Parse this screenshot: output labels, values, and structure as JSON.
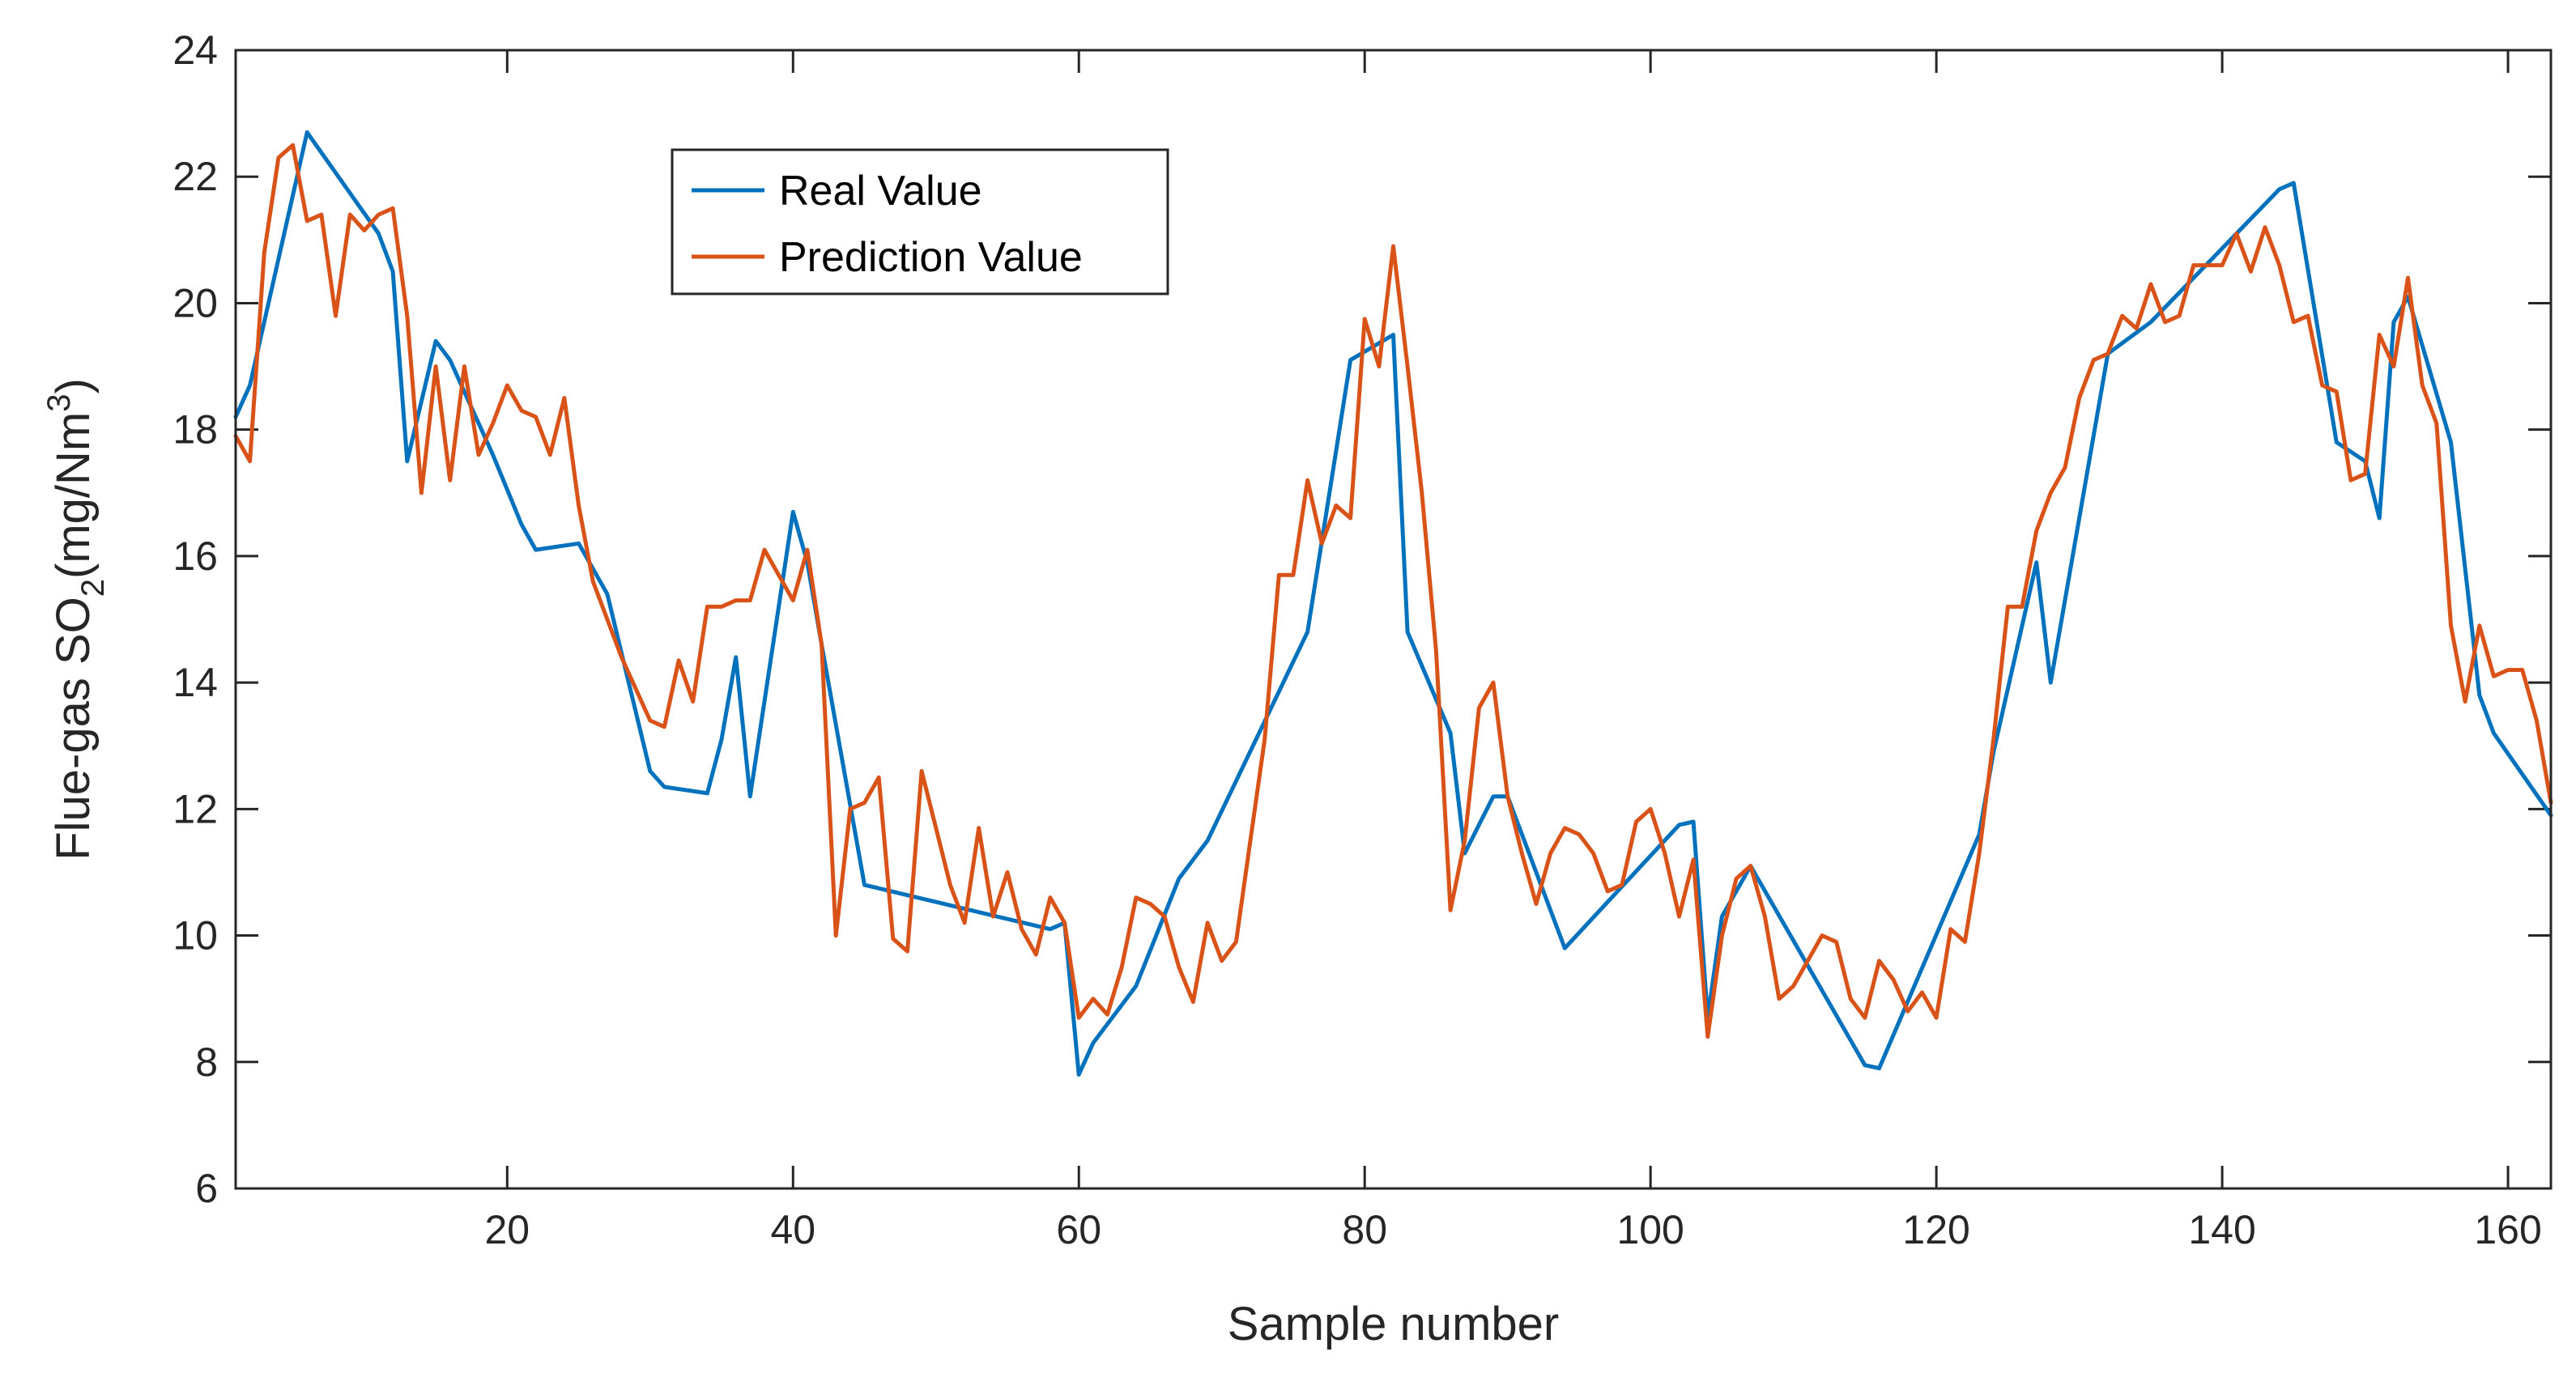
{
  "chart_data": {
    "type": "line",
    "title": "",
    "xlabel": "Sample number",
    "ylabel_parts": [
      "Flue-gas SO",
      "2",
      "(mg/Nm",
      "3",
      ")"
    ],
    "xlim": [
      1,
      163
    ],
    "ylim": [
      6,
      24
    ],
    "xticks": [
      20,
      40,
      60,
      80,
      100,
      120,
      140,
      160
    ],
    "yticks": [
      6,
      8,
      10,
      12,
      14,
      16,
      18,
      20,
      22,
      24
    ],
    "grid": false,
    "legend_position": "top-left-center",
    "series": [
      {
        "name": "Real Value",
        "color": "#0072BD",
        "points": [
          [
            1,
            18.2
          ],
          [
            2,
            18.7
          ],
          [
            6,
            22.7
          ],
          [
            11,
            21.1
          ],
          [
            12,
            20.5
          ],
          [
            13,
            17.5
          ],
          [
            15,
            19.4
          ],
          [
            16,
            19.1
          ],
          [
            19,
            17.6
          ],
          [
            21,
            16.5
          ],
          [
            22,
            16.1
          ],
          [
            25,
            16.2
          ],
          [
            27,
            15.4
          ],
          [
            30,
            12.6
          ],
          [
            31,
            12.35
          ],
          [
            34,
            12.25
          ],
          [
            35,
            13.1
          ],
          [
            36,
            14.4
          ],
          [
            37,
            12.2
          ],
          [
            40,
            16.7
          ],
          [
            41,
            15.9
          ],
          [
            42,
            14.6
          ],
          [
            45,
            10.8
          ],
          [
            58,
            10.1
          ],
          [
            59,
            10.2
          ],
          [
            60,
            7.8
          ],
          [
            61,
            8.3
          ],
          [
            64,
            9.2
          ],
          [
            67,
            10.9
          ],
          [
            69,
            11.5
          ],
          [
            76,
            14.8
          ],
          [
            79,
            19.1
          ],
          [
            82,
            19.5
          ],
          [
            83,
            14.8
          ],
          [
            86,
            13.2
          ],
          [
            87,
            11.3
          ],
          [
            89,
            12.2
          ],
          [
            90,
            12.2
          ],
          [
            94,
            9.8
          ],
          [
            102,
            11.75
          ],
          [
            103,
            11.8
          ],
          [
            104,
            8.7
          ],
          [
            105,
            10.3
          ],
          [
            107,
            11.1
          ],
          [
            115,
            7.95
          ],
          [
            116,
            7.9
          ],
          [
            123,
            11.6
          ],
          [
            124,
            12.9
          ],
          [
            127,
            15.9
          ],
          [
            128,
            14.0
          ],
          [
            132,
            19.2
          ],
          [
            135,
            19.7
          ],
          [
            144,
            21.8
          ],
          [
            145,
            21.9
          ],
          [
            148,
            17.8
          ],
          [
            150,
            17.5
          ],
          [
            151,
            16.6
          ],
          [
            152,
            19.7
          ],
          [
            153,
            20.1
          ],
          [
            156,
            17.8
          ],
          [
            158,
            13.8
          ],
          [
            159,
            13.2
          ],
          [
            163,
            11.9
          ]
        ]
      },
      {
        "name": "Prediction Value",
        "color": "#D95319",
        "points": [
          [
            1,
            17.9
          ],
          [
            2,
            17.5
          ],
          [
            3,
            20.8
          ],
          [
            4,
            22.3
          ],
          [
            5,
            22.5
          ],
          [
            6,
            21.3
          ],
          [
            7,
            21.4
          ],
          [
            8,
            19.8
          ],
          [
            9,
            21.4
          ],
          [
            10,
            21.15
          ],
          [
            11,
            21.4
          ],
          [
            12,
            21.5
          ],
          [
            13,
            19.8
          ],
          [
            14,
            17.0
          ],
          [
            15,
            19.0
          ],
          [
            16,
            17.2
          ],
          [
            17,
            19.0
          ],
          [
            18,
            17.6
          ],
          [
            19,
            18.1
          ],
          [
            20,
            18.7
          ],
          [
            21,
            18.3
          ],
          [
            22,
            18.2
          ],
          [
            23,
            17.6
          ],
          [
            24,
            18.5
          ],
          [
            25,
            16.8
          ],
          [
            26,
            15.6
          ],
          [
            27,
            15.0
          ],
          [
            28,
            14.4
          ],
          [
            29,
            13.9
          ],
          [
            30,
            13.4
          ],
          [
            31,
            13.3
          ],
          [
            32,
            14.35
          ],
          [
            33,
            13.7
          ],
          [
            34,
            15.2
          ],
          [
            35,
            15.2
          ],
          [
            36,
            15.3
          ],
          [
            37,
            15.3
          ],
          [
            38,
            16.1
          ],
          [
            39,
            15.7
          ],
          [
            40,
            15.3
          ],
          [
            41,
            16.1
          ],
          [
            42,
            14.6
          ],
          [
            43,
            10.0
          ],
          [
            44,
            12.0
          ],
          [
            45,
            12.1
          ],
          [
            46,
            12.5
          ],
          [
            47,
            9.95
          ],
          [
            48,
            9.75
          ],
          [
            49,
            12.6
          ],
          [
            50,
            11.7
          ],
          [
            51,
            10.8
          ],
          [
            52,
            10.2
          ],
          [
            53,
            11.7
          ],
          [
            54,
            10.3
          ],
          [
            55,
            11.0
          ],
          [
            56,
            10.1
          ],
          [
            57,
            9.7
          ],
          [
            58,
            10.6
          ],
          [
            59,
            10.2
          ],
          [
            60,
            8.7
          ],
          [
            61,
            9.0
          ],
          [
            62,
            8.75
          ],
          [
            63,
            9.5
          ],
          [
            64,
            10.6
          ],
          [
            65,
            10.5
          ],
          [
            66,
            10.3
          ],
          [
            67,
            9.5
          ],
          [
            68,
            8.95
          ],
          [
            69,
            10.2
          ],
          [
            70,
            9.6
          ],
          [
            71,
            9.9
          ],
          [
            72,
            11.5
          ],
          [
            73,
            13.1
          ],
          [
            74,
            15.7
          ],
          [
            75,
            15.7
          ],
          [
            76,
            17.2
          ],
          [
            77,
            16.2
          ],
          [
            78,
            16.8
          ],
          [
            79,
            16.6
          ],
          [
            80,
            19.75
          ],
          [
            81,
            19.0
          ],
          [
            82,
            20.9
          ],
          [
            83,
            19.0
          ],
          [
            84,
            17.0
          ],
          [
            85,
            14.5
          ],
          [
            86,
            10.4
          ],
          [
            87,
            11.5
          ],
          [
            88,
            13.6
          ],
          [
            89,
            14.0
          ],
          [
            90,
            12.2
          ],
          [
            91,
            11.3
          ],
          [
            92,
            10.5
          ],
          [
            93,
            11.3
          ],
          [
            94,
            11.7
          ],
          [
            95,
            11.6
          ],
          [
            96,
            11.3
          ],
          [
            97,
            10.7
          ],
          [
            98,
            10.8
          ],
          [
            99,
            11.8
          ],
          [
            100,
            12.0
          ],
          [
            101,
            11.3
          ],
          [
            102,
            10.3
          ],
          [
            103,
            11.2
          ],
          [
            104,
            8.4
          ],
          [
            105,
            10.0
          ],
          [
            106,
            10.9
          ],
          [
            107,
            11.1
          ],
          [
            108,
            10.3
          ],
          [
            109,
            9.0
          ],
          [
            110,
            9.2
          ],
          [
            111,
            9.6
          ],
          [
            112,
            10.0
          ],
          [
            113,
            9.9
          ],
          [
            114,
            9.0
          ],
          [
            115,
            8.7
          ],
          [
            116,
            9.6
          ],
          [
            117,
            9.3
          ],
          [
            118,
            8.8
          ],
          [
            119,
            9.1
          ],
          [
            120,
            8.7
          ],
          [
            121,
            10.1
          ],
          [
            122,
            9.9
          ],
          [
            123,
            11.3
          ],
          [
            124,
            13.1
          ],
          [
            125,
            15.2
          ],
          [
            126,
            15.2
          ],
          [
            127,
            16.4
          ],
          [
            128,
            17.0
          ],
          [
            129,
            17.4
          ],
          [
            130,
            18.5
          ],
          [
            131,
            19.1
          ],
          [
            132,
            19.2
          ],
          [
            133,
            19.8
          ],
          [
            134,
            19.6
          ],
          [
            135,
            20.3
          ],
          [
            136,
            19.7
          ],
          [
            137,
            19.8
          ],
          [
            138,
            20.6
          ],
          [
            139,
            20.6
          ],
          [
            140,
            20.6
          ],
          [
            141,
            21.1
          ],
          [
            142,
            20.5
          ],
          [
            143,
            21.2
          ],
          [
            144,
            20.6
          ],
          [
            145,
            19.7
          ],
          [
            146,
            19.8
          ],
          [
            147,
            18.7
          ],
          [
            148,
            18.6
          ],
          [
            149,
            17.2
          ],
          [
            150,
            17.3
          ],
          [
            151,
            19.5
          ],
          [
            152,
            19.0
          ],
          [
            153,
            20.4
          ],
          [
            154,
            18.7
          ],
          [
            155,
            18.1
          ],
          [
            156,
            14.9
          ],
          [
            157,
            13.7
          ],
          [
            158,
            14.9
          ],
          [
            159,
            14.1
          ],
          [
            160,
            14.2
          ],
          [
            161,
            14.2
          ],
          [
            162,
            13.4
          ],
          [
            163,
            12.1
          ]
        ]
      }
    ]
  }
}
